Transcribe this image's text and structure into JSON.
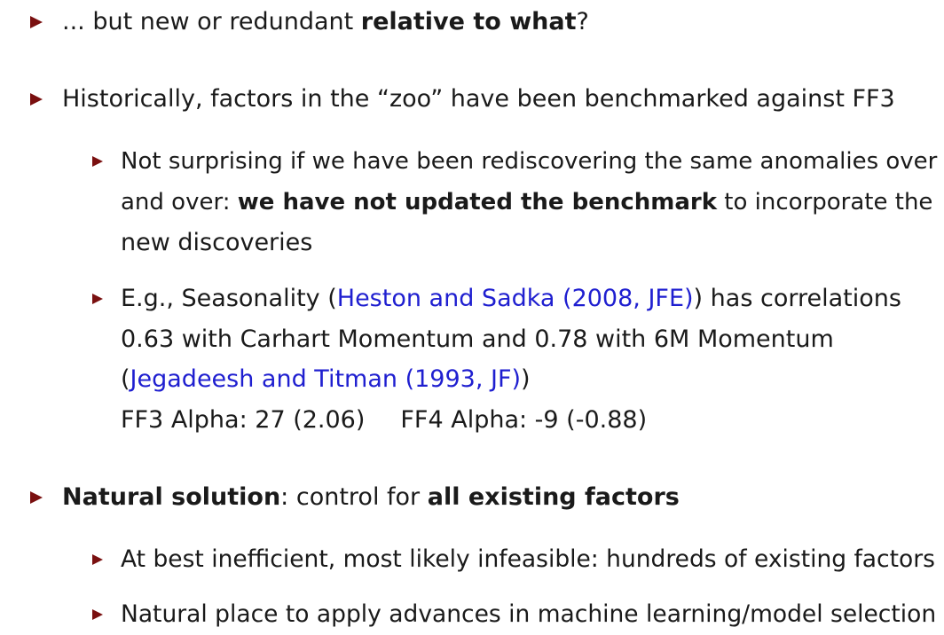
{
  "bullets": {
    "b1": {
      "pre": "... but new or redundant ",
      "bold": "relative to what",
      "post": "?"
    },
    "b2": {
      "text": "Historically, factors in the “zoo” have been benchmarked against FF3"
    },
    "b2a": {
      "line1": "Not surprising if we have been rediscovering the same anomalies over",
      "line2_pre": "and over: ",
      "line2_bold": "we have not updated the benchmark",
      "line2_post": " to incorporate the",
      "line3": "new discoveries"
    },
    "b2b": {
      "line1_pre": "E.g., Seasonality (",
      "line1_link": "Heston and Sadka (2008, JFE)",
      "line1_post": ") has correlations",
      "line2": "0.63 with Carhart Momentum and 0.78 with 6M Momentum",
      "line3_pre": "(",
      "line3_link": "Jegadeesh and Titman (1993, JF)",
      "line3_post": ")",
      "ff3_alpha": "FF3 Alpha: 27 (2.06)",
      "ff4_alpha": "FF4 Alpha: -9 (-0.88)"
    },
    "b3": {
      "bold1": "Natural solution",
      "mid": ": control for ",
      "bold2": "all existing factors"
    },
    "b3a": {
      "text": "At best inefficient, most likely infeasible: hundreds of existing factors"
    },
    "b3b": {
      "text": "Natural place to apply advances in machine learning/model selection"
    }
  },
  "colors": {
    "bullet_marker": "#7a1010",
    "link": "#1f1fd0",
    "text": "#1a1a1a"
  }
}
